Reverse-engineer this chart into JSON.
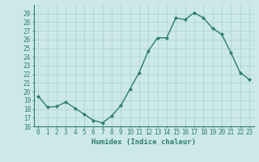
{
  "x": [
    0,
    1,
    2,
    3,
    4,
    5,
    6,
    7,
    8,
    9,
    10,
    11,
    12,
    13,
    14,
    15,
    16,
    17,
    18,
    19,
    20,
    21,
    22,
    23
  ],
  "y": [
    19.5,
    18.2,
    18.3,
    18.8,
    18.1,
    17.4,
    16.7,
    16.4,
    17.2,
    18.4,
    20.3,
    22.2,
    24.7,
    26.2,
    26.2,
    28.5,
    28.3,
    29.1,
    28.5,
    27.3,
    26.6,
    24.5,
    22.2,
    21.4
  ],
  "line_color": "#2e7d6e",
  "marker": "D",
  "markersize": 2.0,
  "linewidth": 1.0,
  "bg_color": "#cce8ea",
  "grid_color": "#b0d4d6",
  "xlabel": "Humidex (Indice chaleur)",
  "ylim": [
    16,
    30
  ],
  "xlim": [
    -0.5,
    23.5
  ],
  "yticks": [
    16,
    17,
    18,
    19,
    20,
    21,
    22,
    23,
    24,
    25,
    26,
    27,
    28,
    29
  ],
  "xticks": [
    0,
    1,
    2,
    3,
    4,
    5,
    6,
    7,
    8,
    9,
    10,
    11,
    12,
    13,
    14,
    15,
    16,
    17,
    18,
    19,
    20,
    21,
    22,
    23
  ],
  "xlabel_fontsize": 6.5,
  "tick_fontsize": 5.5
}
